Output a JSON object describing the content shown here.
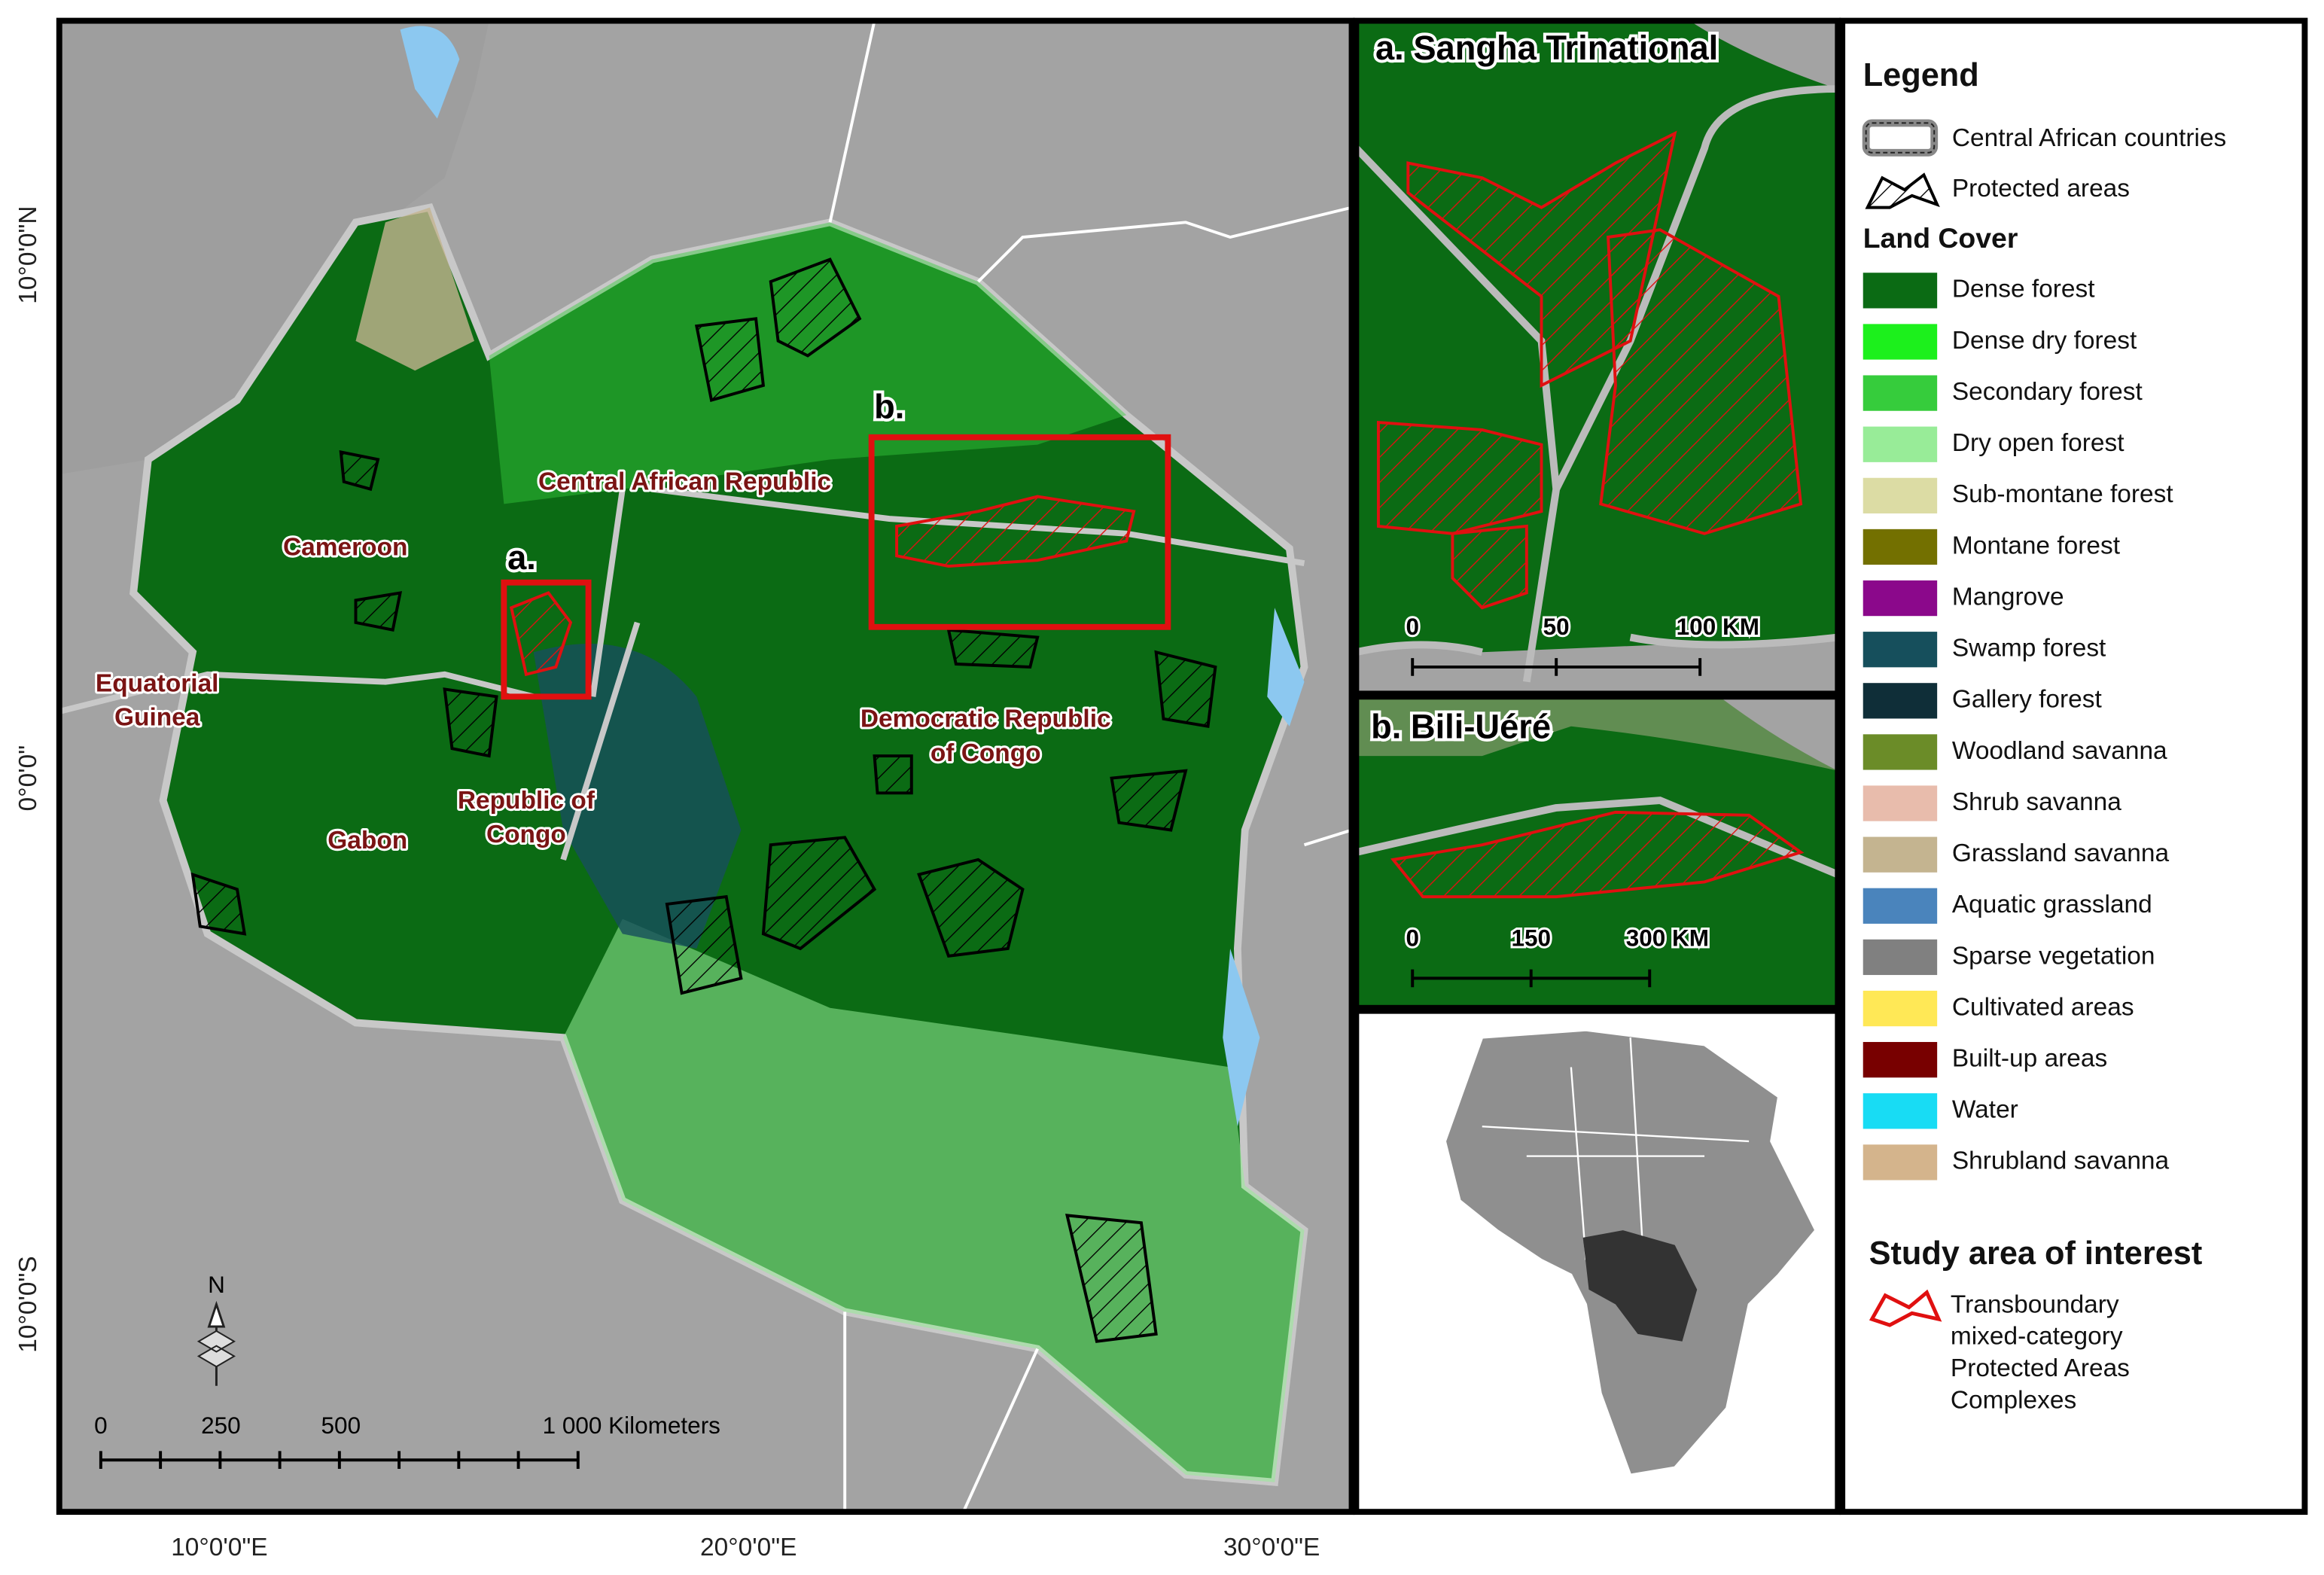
{
  "main_map": {
    "country_labels": [
      [
        "Cameroon"
      ],
      [
        "Central African Republic"
      ],
      [
        "Equatorial",
        "Guinea"
      ],
      [
        "Gabon"
      ],
      [
        "Republic of",
        "Congo"
      ],
      [
        "Democratic Republic",
        "of Congo"
      ]
    ],
    "inset_markers": [
      "a.",
      "b."
    ],
    "graticule": {
      "latitudes": [
        "10°0'0\"N",
        "0°0'0\"",
        "10°0'0\"S"
      ],
      "longitudes": [
        "10°0'0\"E",
        "20°0'0\"E",
        "30°0'0\"E"
      ]
    },
    "north_arrow": "N",
    "scale_bar": [
      "0",
      "250",
      "500",
      "1 000 Kilometers"
    ]
  },
  "insets": [
    {
      "title": "a. Sangha Trinational",
      "scale_bar": [
        "0",
        "50",
        "100 KM"
      ]
    },
    {
      "title": "b. Bili-Uéré",
      "scale_bar": [
        "0",
        "150",
        "300 KM"
      ]
    }
  ],
  "legend": {
    "title": "Legend",
    "items": [
      "Central African countries",
      "Protected areas"
    ],
    "land_cover_title": "Land Cover",
    "land_cover": [
      {
        "label": "Dense forest",
        "color": "#0b6b14"
      },
      {
        "label": "Dense dry forest",
        "color": "#1cf01c"
      },
      {
        "label": "Secondary forest",
        "color": "#36cc3c"
      },
      {
        "label": "Dry open forest",
        "color": "#98ec98"
      },
      {
        "label": "Sub-montane forest",
        "color": "#dcdca4"
      },
      {
        "label": "Montane forest",
        "color": "#737000"
      },
      {
        "label": "Mangrove",
        "color": "#8b088b"
      },
      {
        "label": "Swamp forest",
        "color": "#164f5c"
      },
      {
        "label": "Gallery forest",
        "color": "#0f2e38"
      },
      {
        "label": "Woodland savanna",
        "color": "#6b8c28"
      },
      {
        "label": "Shrub savanna",
        "color": "#e8bcac"
      },
      {
        "label": "Grassland savanna",
        "color": "#c4b490"
      },
      {
        "label": "Aquatic grassland",
        "color": "#4a84bc"
      },
      {
        "label": "Sparse vegetation",
        "color": "#808080"
      },
      {
        "label": "Cultivated areas",
        "color": "#ffe856"
      },
      {
        "label": "Built-up areas",
        "color": "#780000"
      },
      {
        "label": "Water",
        "color": "#18dcf4"
      },
      {
        "label": "Shrubland savanna",
        "color": "#d4b48c"
      }
    ],
    "study_title": "Study area of interest",
    "study_item": [
      "Transboundary",
      "mixed-category",
      "Protected Areas",
      "Complexes"
    ]
  }
}
